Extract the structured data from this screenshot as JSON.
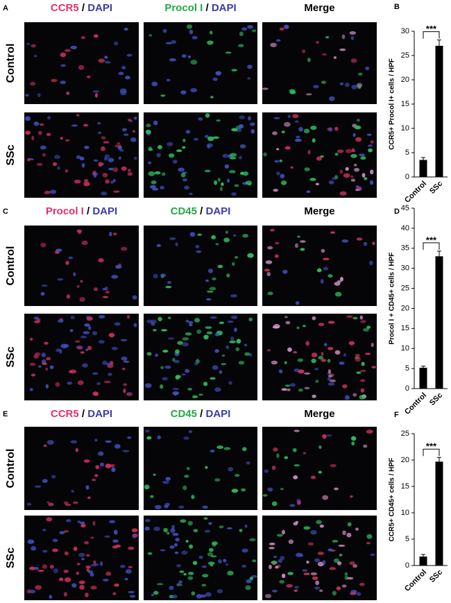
{
  "figure_rows": [
    {
      "letter": "A",
      "row_labels": [
        "Control",
        "SSc"
      ],
      "headers": [
        [
          {
            "text": "CCR5",
            "color": "#e0306e"
          },
          {
            "text": " / ",
            "color": "#000000"
          },
          {
            "text": "DAPI",
            "color": "#3b3ba8"
          }
        ],
        [
          {
            "text": "Procol I",
            "color": "#22a845"
          },
          {
            "text": " / ",
            "color": "#000000"
          },
          {
            "text": "DAPI",
            "color": "#3b3ba8"
          }
        ],
        [
          {
            "text": "Merge",
            "color": "#000000"
          }
        ]
      ]
    },
    {
      "letter": "C",
      "row_labels": [
        "Control",
        "SSc"
      ],
      "headers": [
        [
          {
            "text": "Procol I",
            "color": "#e0306e"
          },
          {
            "text": " / ",
            "color": "#000000"
          },
          {
            "text": "DAPI",
            "color": "#3b3ba8"
          }
        ],
        [
          {
            "text": "CD45",
            "color": "#22a845"
          },
          {
            "text": " / ",
            "color": "#000000"
          },
          {
            "text": "DAPI",
            "color": "#3b3ba8"
          }
        ],
        [
          {
            "text": "Merge",
            "color": "#000000"
          }
        ]
      ]
    },
    {
      "letter": "E",
      "row_labels": [
        "Control",
        "SSc"
      ],
      "headers": [
        [
          {
            "text": "CCR5",
            "color": "#e0306e"
          },
          {
            "text": " / ",
            "color": "#000000"
          },
          {
            "text": "DAPI",
            "color": "#3b3ba8"
          }
        ],
        [
          {
            "text": "CD45",
            "color": "#22a845"
          },
          {
            "text": " / ",
            "color": "#000000"
          },
          {
            "text": "DAPI",
            "color": "#3b3ba8"
          }
        ],
        [
          {
            "text": "Merge",
            "color": "#000000"
          }
        ]
      ]
    }
  ],
  "chart_data": [
    {
      "type": "bar",
      "letter": "B",
      "ylabel": "CCR5+ Procol I+ cells / HPF",
      "categories": [
        "Control",
        "SSc"
      ],
      "values": [
        3.5,
        27
      ],
      "errors": [
        0.5,
        1.2
      ],
      "color": "#000000",
      "ylim": [
        0,
        30
      ],
      "yticks": [
        0,
        5,
        10,
        15,
        20,
        25,
        30
      ],
      "annotation": "***"
    },
    {
      "type": "bar",
      "letter": "D",
      "ylabel": "Procol I + CD45+ cells / HPF",
      "categories": [
        "Control",
        "SSc"
      ],
      "values": [
        5.2,
        33
      ],
      "errors": [
        0.4,
        1.3
      ],
      "color": "#000000",
      "ylim": [
        0,
        45
      ],
      "yticks": [
        0,
        5,
        10,
        15,
        20,
        25,
        30,
        35,
        40,
        45
      ],
      "annotation": "***"
    },
    {
      "type": "bar",
      "letter": "F",
      "ylabel": "CCR5+ CD45+ cells / HPF",
      "categories": [
        "Control",
        "SSc"
      ],
      "values": [
        1.7,
        19.7
      ],
      "errors": [
        0.4,
        0.8
      ],
      "color": "#000000",
      "ylim": [
        0,
        25
      ],
      "yticks": [
        0,
        5,
        10,
        15,
        20,
        25
      ],
      "annotation": "***"
    }
  ]
}
